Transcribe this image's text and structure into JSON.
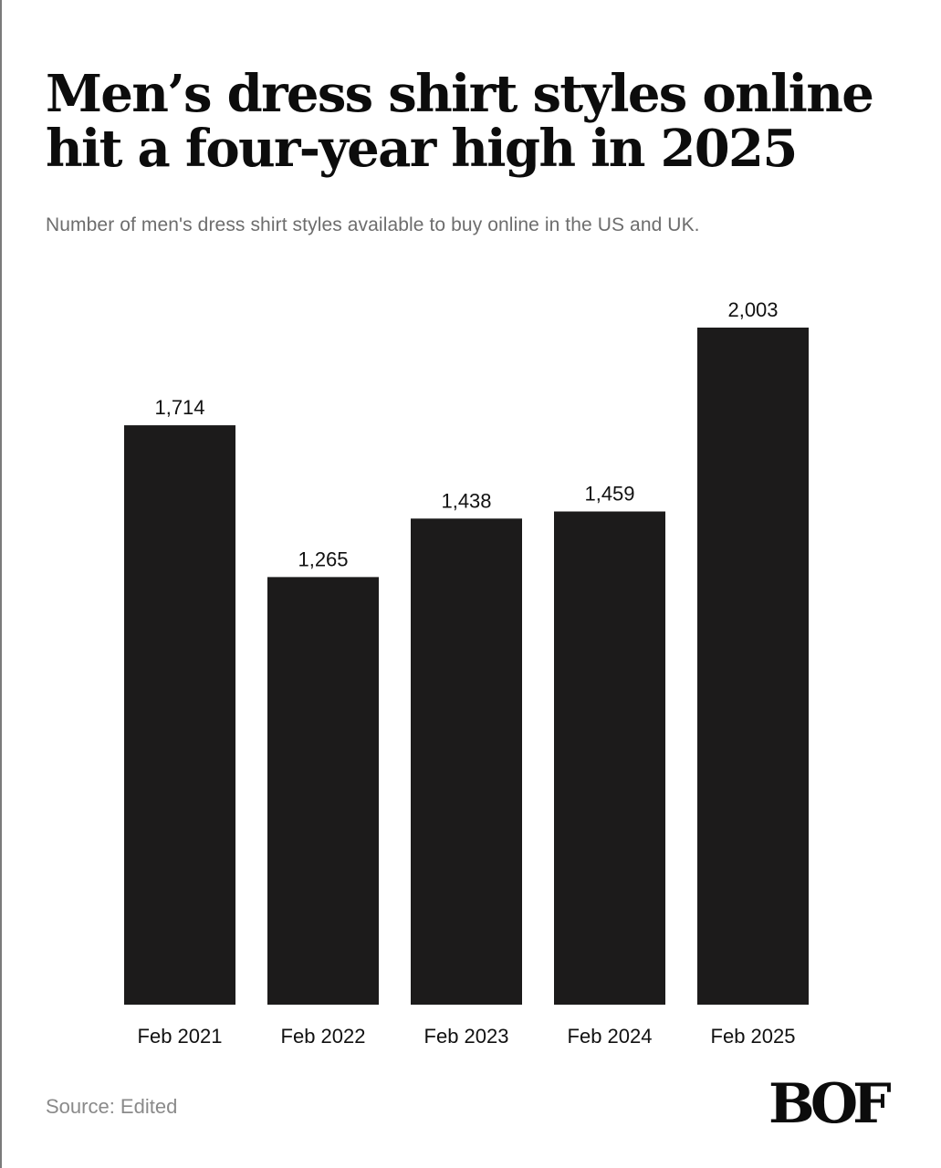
{
  "chart_data": {
    "type": "bar",
    "title": "Men’s dress shirt styles online hit a four-year high in 2025",
    "subtitle": "Number of men's dress shirt styles available to buy online in the US and UK.",
    "categories": [
      "Feb 2021",
      "Feb 2022",
      "Feb 2023",
      "Feb 2024",
      "Feb 2025"
    ],
    "values": [
      1714,
      1265,
      1438,
      1459,
      2003
    ],
    "value_labels": [
      "1,714",
      "1,265",
      "1,438",
      "1,459",
      "2,003"
    ],
    "xlabel": "",
    "ylabel": "",
    "ylim": [
      0,
      2003
    ],
    "grid": false,
    "bar_color": "#1c1b1b"
  },
  "footer": {
    "source": "Source: Edited",
    "logo_text": "BOF"
  }
}
